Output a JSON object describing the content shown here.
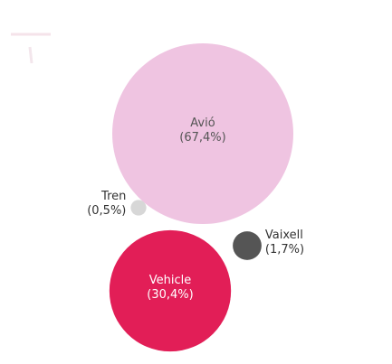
{
  "chart_data": {
    "type": "bubble",
    "title": "",
    "categories": [
      "Avió",
      "Vehicle",
      "Vaixell",
      "Tren"
    ],
    "values": [
      67.4,
      30.4,
      1.7,
      0.5
    ],
    "unit": "%",
    "labels": [
      "(67,4%)",
      "(30,4%)",
      "(1,7%)",
      "(0,5%)"
    ],
    "colors": [
      "#efc4e1",
      "#e21e57",
      "#555555",
      "#d7d7d7"
    ],
    "label_colors": [
      "#555555",
      "#ffffff",
      "#333333",
      "#333333"
    ],
    "label_placement": [
      "inside",
      "inside",
      "right",
      "left"
    ]
  }
}
